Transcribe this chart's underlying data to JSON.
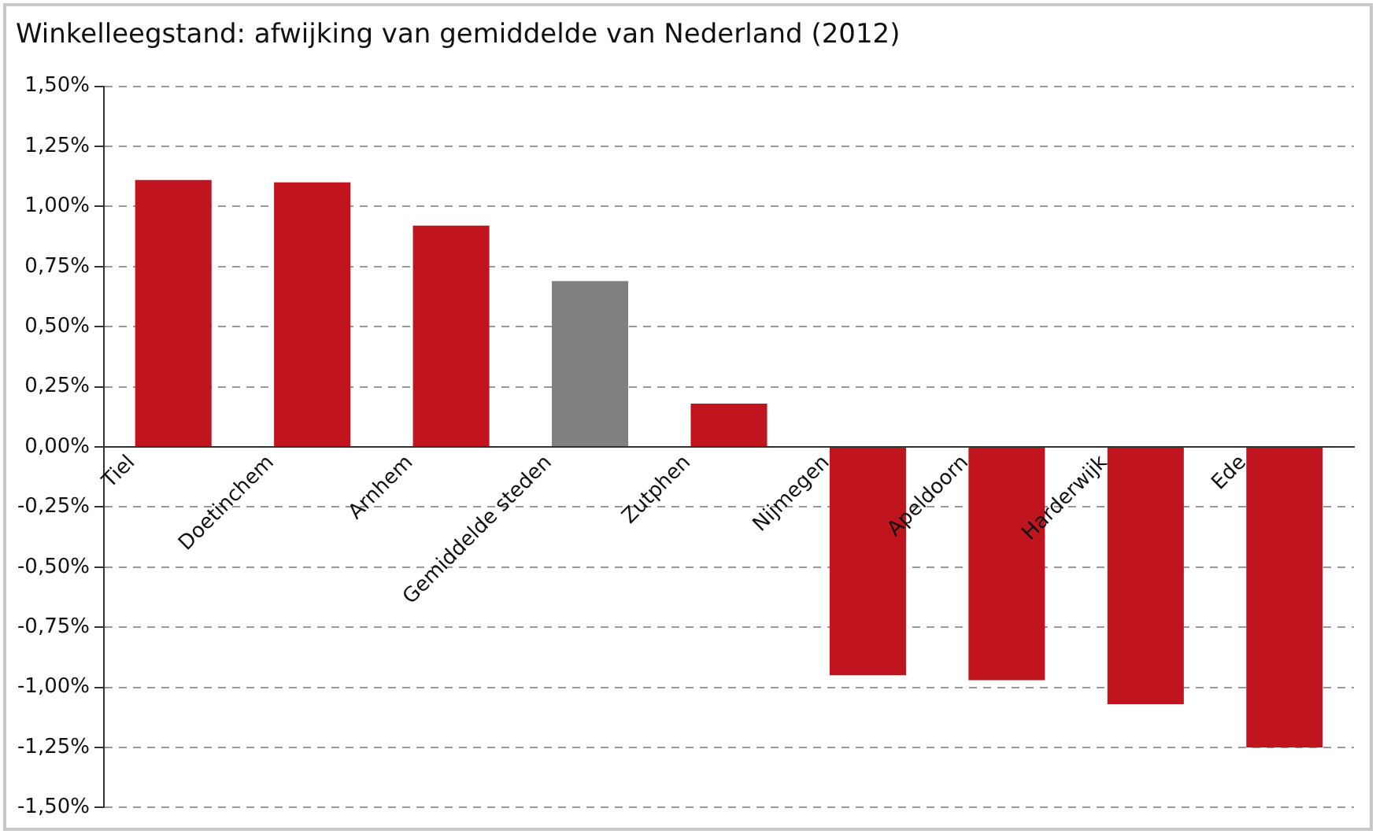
{
  "chart_data": {
    "type": "bar",
    "title": "Winkelleegstand: afwijking van gemiddelde van Nederland (2012)",
    "categories": [
      "Tiel",
      "Doetinchem",
      "Arnhem",
      "Gemiddelde steden",
      "Zutphen",
      "Nijmegen",
      "Apeldoorn",
      "Harderwijk",
      "Ede"
    ],
    "values": [
      1.11,
      1.1,
      0.92,
      0.69,
      0.18,
      -0.95,
      -0.97,
      -1.07,
      -1.25
    ],
    "colors": [
      "#c0141e",
      "#c0141e",
      "#c0141e",
      "#808080",
      "#c0141e",
      "#c0141e",
      "#c0141e",
      "#c0141e",
      "#c0141e"
    ],
    "ylim": [
      -1.5,
      1.5
    ],
    "yticks": [
      {
        "value": -1.5,
        "label": "-1,50%"
      },
      {
        "value": -1.25,
        "label": "-1,25%"
      },
      {
        "value": -1,
        "label": "-1,00%"
      },
      {
        "value": -0.75,
        "label": "-0,75%"
      },
      {
        "value": -0.5,
        "label": "-0,50%"
      },
      {
        "value": -0.25,
        "label": "-0,25%"
      },
      {
        "value": 0,
        "label": "0,00%"
      },
      {
        "value": 0.25,
        "label": "0,25%"
      },
      {
        "value": 0.5,
        "label": "0,50%"
      },
      {
        "value": 0.75,
        "label": "0,75%"
      },
      {
        "value": 1,
        "label": "1,00%"
      },
      {
        "value": 1.25,
        "label": "1,25%"
      },
      {
        "value": 1.5,
        "label": "1,50%"
      }
    ],
    "grid": "y",
    "legend": false
  }
}
